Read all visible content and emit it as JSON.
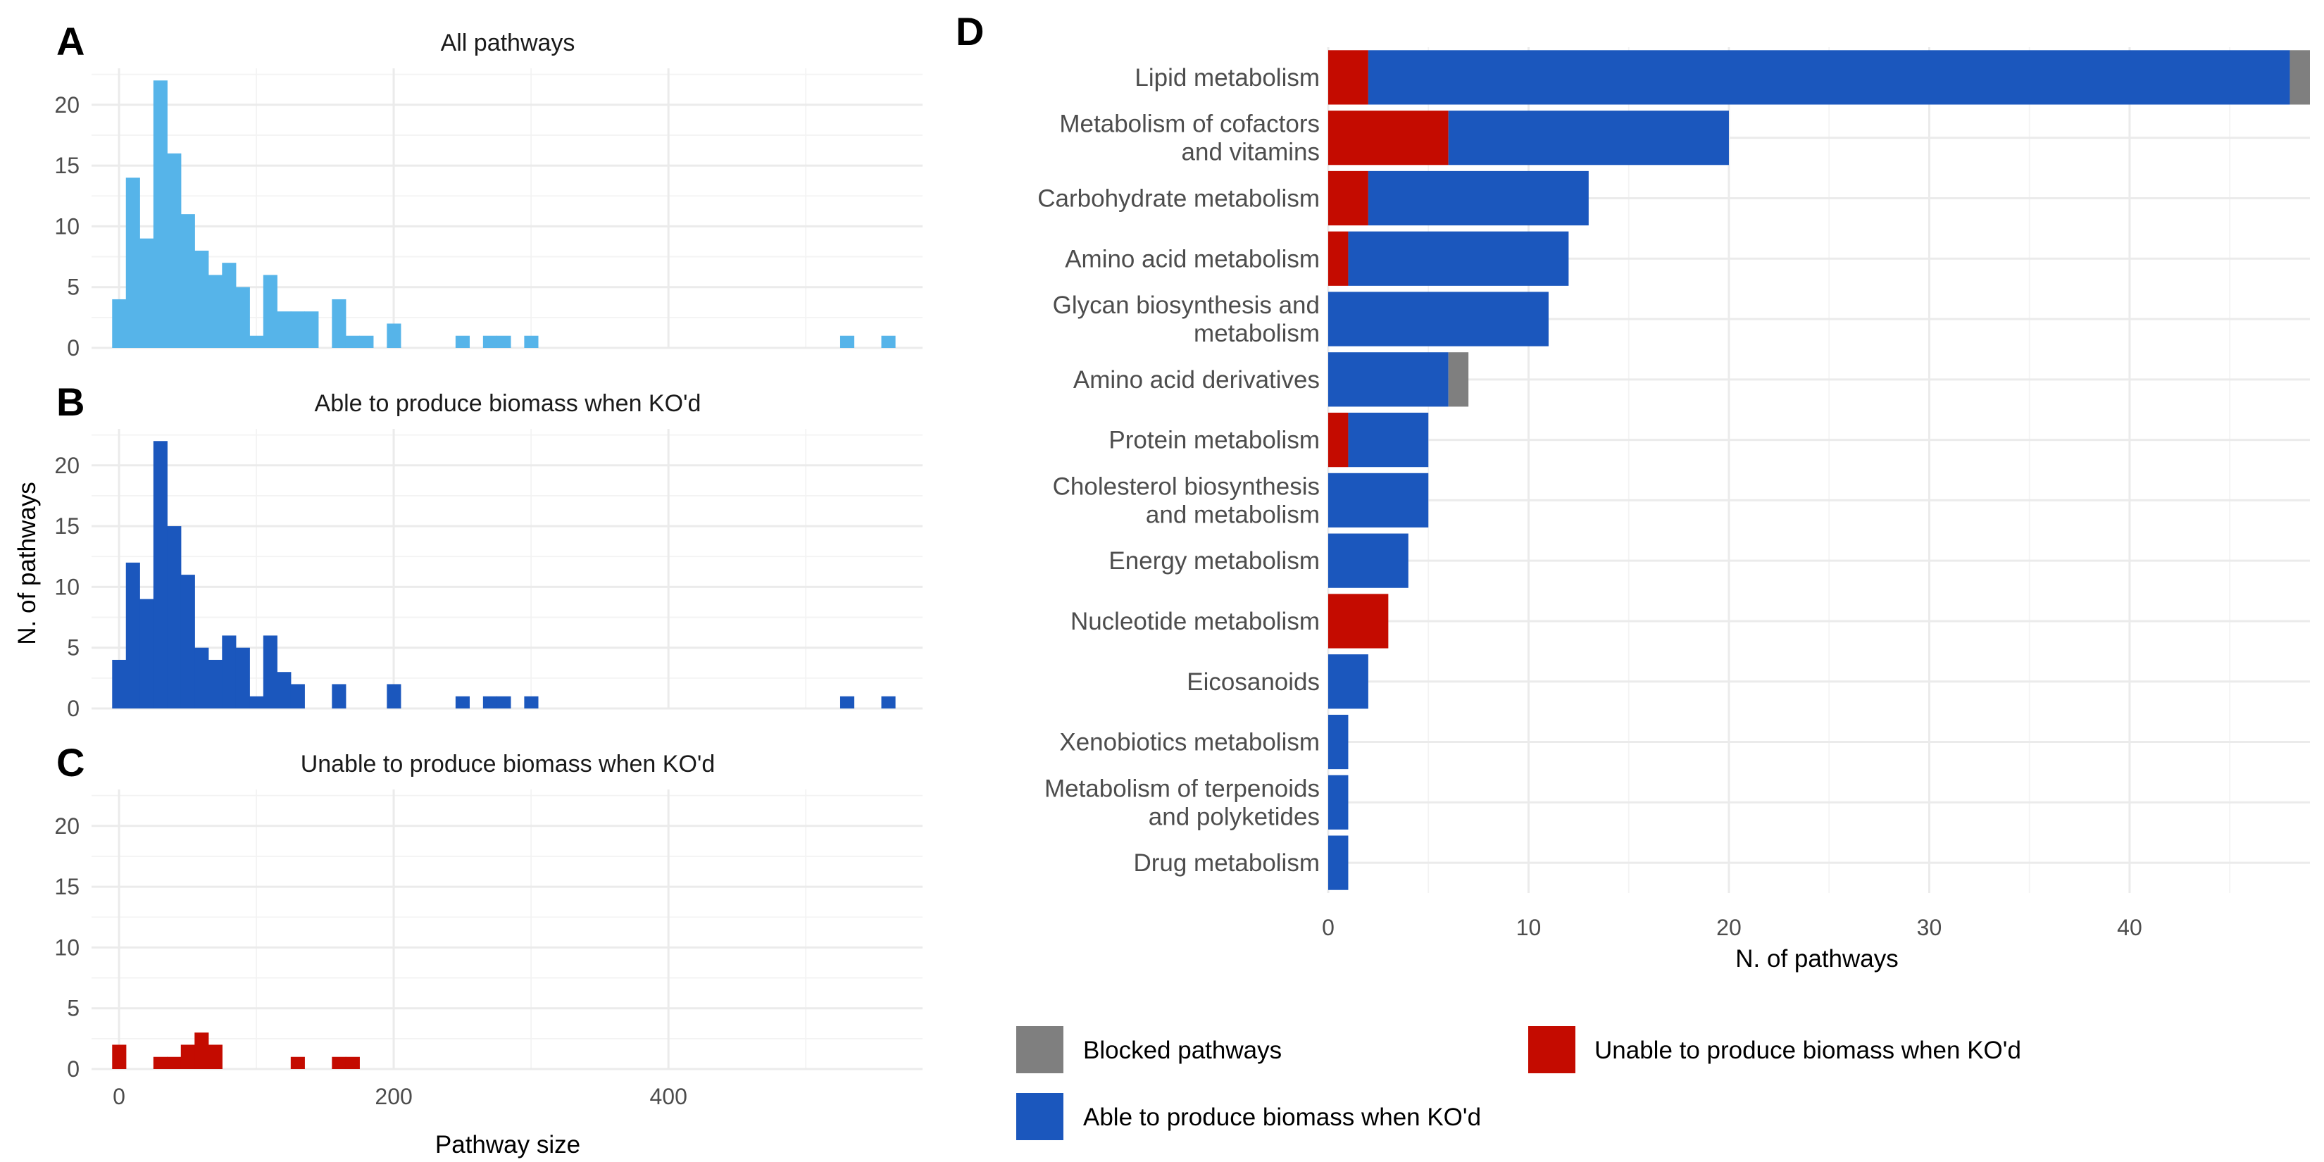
{
  "colors": {
    "all": "#56b4e9",
    "able": "#1b57bd",
    "unable": "#c40b00",
    "blocked": "#7f7f7f"
  },
  "chart_data": [
    {
      "id": "A",
      "type": "bar",
      "title": "All pathways",
      "bin_width": 10,
      "x": [
        0,
        10,
        20,
        30,
        40,
        50,
        60,
        70,
        80,
        90,
        100,
        110,
        120,
        130,
        140,
        160,
        170,
        180,
        200,
        250,
        270,
        280,
        300,
        530,
        560
      ],
      "values": [
        4,
        14,
        9,
        22,
        16,
        11,
        8,
        6,
        7,
        5,
        1,
        6,
        3,
        3,
        3,
        4,
        1,
        1,
        2,
        1,
        1,
        1,
        1,
        1,
        1
      ],
      "xlim": [
        -20,
        585
      ],
      "ylim": [
        0,
        23
      ],
      "y_ticks": [
        0,
        5,
        10,
        15,
        20
      ],
      "x_ticks": [
        0,
        200,
        400
      ],
      "show_x_labels": false,
      "color": "#56b4e9"
    },
    {
      "id": "B",
      "type": "bar",
      "title": "Able to produce biomass when KO'd",
      "bin_width": 10,
      "x": [
        0,
        10,
        20,
        30,
        40,
        50,
        60,
        70,
        80,
        90,
        100,
        110,
        120,
        130,
        160,
        200,
        250,
        270,
        280,
        300,
        530,
        560
      ],
      "values": [
        4,
        12,
        9,
        22,
        15,
        11,
        5,
        4,
        6,
        5,
        1,
        6,
        3,
        2,
        2,
        2,
        1,
        1,
        1,
        1,
        1,
        1
      ],
      "xlim": [
        -20,
        585
      ],
      "ylim": [
        0,
        23
      ],
      "y_ticks": [
        0,
        5,
        10,
        15,
        20
      ],
      "x_ticks": [
        0,
        200,
        400
      ],
      "show_x_labels": false,
      "color": "#1b57bd"
    },
    {
      "id": "C",
      "type": "bar",
      "title": "Unable to produce biomass when KO'd",
      "bin_width": 10,
      "x": [
        0,
        30,
        40,
        50,
        60,
        70,
        130,
        160,
        170
      ],
      "values": [
        2,
        1,
        1,
        2,
        3,
        2,
        1,
        1,
        1
      ],
      "xlim": [
        -20,
        585
      ],
      "ylim": [
        0,
        23
      ],
      "y_ticks": [
        0,
        5,
        10,
        15,
        20
      ],
      "x_ticks": [
        0,
        200,
        400
      ],
      "show_x_labels": true,
      "xlabel": "Pathway size",
      "color": "#c40b00"
    },
    {
      "id": "D",
      "type": "bar",
      "orientation": "horizontal",
      "stacked": true,
      "categories": [
        [
          "Lipid metabolism"
        ],
        [
          "Metabolism of cofactors",
          "and vitamins"
        ],
        [
          "Carbohydrate metabolism"
        ],
        [
          "Amino acid metabolism"
        ],
        [
          "Glycan biosynthesis and",
          "metabolism"
        ],
        [
          "Amino acid derivatives"
        ],
        [
          "Protein metabolism"
        ],
        [
          "Cholesterol biosynthesis",
          "and metabolism"
        ],
        [
          "Energy metabolism"
        ],
        [
          "Nucleotide metabolism"
        ],
        [
          "Eicosanoids"
        ],
        [
          "Xenobiotics metabolism"
        ],
        [
          "Metabolism of terpenoids",
          "and polyketides"
        ],
        [
          "Drug metabolism"
        ]
      ],
      "series": [
        {
          "name": "Unable to produce biomass when KO'd",
          "color": "#c40b00",
          "values": [
            2,
            6,
            2,
            1,
            0,
            0,
            1,
            0,
            0,
            3,
            0,
            0,
            0,
            0
          ]
        },
        {
          "name": "Able to produce biomass when KO'd",
          "color": "#1b57bd",
          "values": [
            46,
            14,
            11,
            11,
            11,
            6,
            4,
            5,
            4,
            0,
            2,
            1,
            1,
            1
          ]
        },
        {
          "name": "Blocked pathways",
          "color": "#7f7f7f",
          "values": [
            1,
            0,
            0,
            0,
            0,
            1,
            0,
            0,
            0,
            0,
            0,
            0,
            0,
            0
          ]
        }
      ],
      "xlim": [
        0,
        49
      ],
      "x_ticks": [
        0,
        10,
        20,
        30,
        40
      ],
      "xlabel": "N. of pathways"
    }
  ],
  "shared_ylabel": "N. of pathways",
  "legend": {
    "items": [
      {
        "label": "Blocked pathways",
        "color": "#7f7f7f"
      },
      {
        "label": "Unable to produce biomass when KO'd",
        "color": "#c40b00"
      },
      {
        "label": "Able to produce biomass when KO'd",
        "color": "#1b57bd"
      }
    ]
  }
}
